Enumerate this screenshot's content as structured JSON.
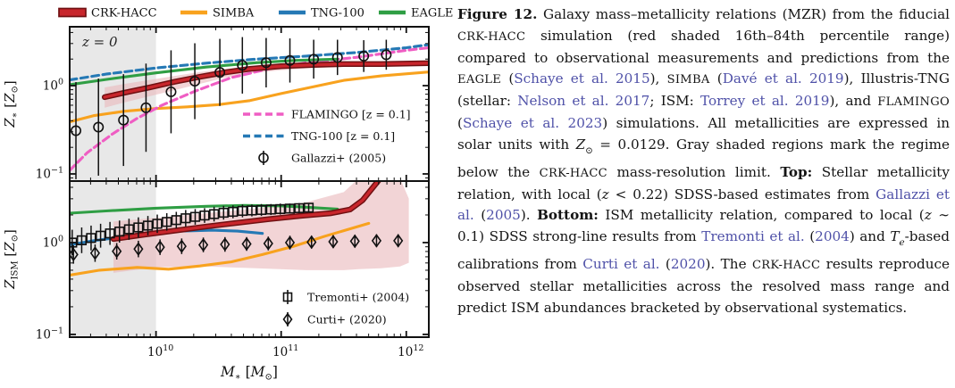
{
  "figure": {
    "link_color": "#4f51a8",
    "caption_segments": [
      {
        "t": "Figure 12.",
        "s": "bold"
      },
      {
        "t": " Galaxy mass–metallicity relations (MZR) from the fiducial ",
        "s": "n"
      },
      {
        "t": "CRK-HACC",
        "s": "sc"
      },
      {
        "t": " simulation (red shaded 16th–84th percentile range) compared to observational measurements and predictions from the ",
        "s": "n"
      },
      {
        "t": "EAGLE",
        "s": "sc"
      },
      {
        "t": " (",
        "s": "n"
      },
      {
        "t": "Schaye et al. 2015",
        "s": "link"
      },
      {
        "t": "), ",
        "s": "n"
      },
      {
        "t": "SIMBA",
        "s": "sc"
      },
      {
        "t": " (",
        "s": "n"
      },
      {
        "t": "Davé et al. 2019",
        "s": "link"
      },
      {
        "t": "), Illustris-TNG (stellar: ",
        "s": "n"
      },
      {
        "t": "Nelson et al. 2017",
        "s": "link"
      },
      {
        "t": "; ISM: ",
        "s": "n"
      },
      {
        "t": "Torrey et al. 2019",
        "s": "link"
      },
      {
        "t": "), and ",
        "s": "n"
      },
      {
        "t": "FLAMINGO",
        "s": "sc"
      },
      {
        "t": " (",
        "s": "n"
      },
      {
        "t": "Schaye et al. 2023",
        "s": "link"
      },
      {
        "t": ") simulations.  All metallicities are expressed in solar units with ",
        "s": "n"
      },
      {
        "t": "Z",
        "s": "math"
      },
      {
        "t": "⊙",
        "s": "msub"
      },
      {
        "t": " = 0.0129.  Gray shaded regions mark the regime below the ",
        "s": "n"
      },
      {
        "t": "CRK-HACC",
        "s": "sc"
      },
      {
        "t": " mass-resolution limit.  ",
        "s": "n"
      },
      {
        "t": "Top:",
        "s": "bold"
      },
      {
        "t": " Stellar metallicity relation, with local (",
        "s": "n"
      },
      {
        "t": "z",
        "s": "math"
      },
      {
        "t": " < 0.22) SDSS-based estimates from ",
        "s": "n"
      },
      {
        "t": "Gallazzi et al.",
        "s": "link"
      },
      {
        "t": " (",
        "s": "n"
      },
      {
        "t": "2005",
        "s": "link"
      },
      {
        "t": ").  ",
        "s": "n"
      },
      {
        "t": "Bottom:",
        "s": "bold"
      },
      {
        "t": " ISM metallicity relation, compared to local (",
        "s": "n"
      },
      {
        "t": "z",
        "s": "math"
      },
      {
        "t": " ∼ 0.1) SDSS strong-line results from ",
        "s": "n"
      },
      {
        "t": "Tremonti et al.",
        "s": "link"
      },
      {
        "t": " (",
        "s": "n"
      },
      {
        "t": "2004",
        "s": "link"
      },
      {
        "t": ") and ",
        "s": "n"
      },
      {
        "t": "T",
        "s": "math"
      },
      {
        "t": "e",
        "s": "msub-it"
      },
      {
        "t": "-based calibrations from ",
        "s": "n"
      },
      {
        "t": "Curti et al.",
        "s": "link"
      },
      {
        "t": " (",
        "s": "n"
      },
      {
        "t": "2020",
        "s": "link"
      },
      {
        "t": ").  The ",
        "s": "n"
      },
      {
        "t": "CRK-HACC",
        "s": "sc"
      },
      {
        "t": " results reproduce observed stellar metallicities across the resolved mass range and predict ISM abundances bracketed by observational systematics.",
        "s": "n"
      }
    ]
  },
  "chart_data": {
    "type": "line",
    "title": "Galaxy mass-metallicity relations (MZR), stellar (top) and ISM (bottom)",
    "colors": {
      "crk": "#c8262c",
      "crk_edge": "#701012",
      "band": "#e9b8ba",
      "simba": "#f8a21e",
      "tng": "#2579b5",
      "eagle": "#2f9e44",
      "flamingo": "#ef5dc3",
      "gray_region": "#e8e8e8",
      "axis": "#111111",
      "marker": "#111111"
    },
    "figure_legend": [
      {
        "label": "CRK-HACC",
        "handle": "patch",
        "color_key": "crk"
      },
      {
        "label": "SIMBA",
        "handle": "line",
        "color_key": "simba"
      },
      {
        "label": "TNG-100",
        "handle": "line",
        "color_key": "tng"
      },
      {
        "label": "EAGLE",
        "handle": "line",
        "color_key": "eagle"
      }
    ],
    "x_axis": {
      "scale": "log",
      "log_range": [
        9.31,
        12.18
      ],
      "major_ticks": [
        {
          "v": 10,
          "e": "10"
        },
        {
          "v": 11,
          "e": "11"
        },
        {
          "v": 12,
          "e": "12"
        }
      ],
      "label_parts": [
        {
          "t": "M",
          "i": 1
        },
        {
          "t": "∗",
          "s": 1
        },
        {
          "t": " ["
        },
        {
          "t": "M",
          "i": 1
        },
        {
          "t": "⊙",
          "s": 1
        },
        {
          "t": "]"
        }
      ]
    },
    "panels": [
      {
        "name": "stellar-metallicity",
        "annotation": "z = 0",
        "log_range": [
          -1.081,
          0.667
        ],
        "major_ticks": [
          {
            "v": 0,
            "e": "0"
          },
          {
            "v": -1,
            "e": "−1"
          }
        ],
        "ylabel_parts": [
          {
            "t": "Z",
            "i": 1
          },
          {
            "t": "∗",
            "s": 1
          },
          {
            "t": " ["
          },
          {
            "t": "Z",
            "i": 1
          },
          {
            "t": "⊙",
            "s": 1
          },
          {
            "t": "]"
          }
        ],
        "gray_region": [
          9.31,
          10.0
        ],
        "legend": [
          {
            "label": "FLAMINGO [z = 0.1]",
            "handle": "dashed",
            "color_key": "flamingo"
          },
          {
            "label": "TNG-100 [z = 0.1]",
            "handle": "dashed",
            "color_key": "tng"
          },
          {
            "label": "Gallazzi+ (2005)",
            "handle": "circle"
          }
        ],
        "series": [
          {
            "name": "SIMBA",
            "color_key": "simba",
            "style": "solid",
            "x": [
              9.31,
              9.5,
              9.75,
              10.0,
              10.25,
              10.5,
              10.75,
              11.0,
              11.25,
              11.5,
              11.8,
              12.18
            ],
            "y": [
              -0.41,
              -0.34,
              -0.29,
              -0.26,
              -0.24,
              -0.215,
              -0.17,
              -0.09,
              -0.015,
              0.06,
              0.11,
              0.155
            ]
          },
          {
            "name": "FLAMINGO [z = 0.1]",
            "color_key": "flamingo",
            "style": "dashed",
            "x": [
              9.31,
              9.45,
              9.65,
              9.85,
              10.05,
              10.3,
              10.6,
              10.9,
              11.2,
              11.6,
              12.0,
              12.18
            ],
            "y": [
              -0.96,
              -0.76,
              -0.55,
              -0.37,
              -0.22,
              -0.07,
              0.09,
              0.19,
              0.26,
              0.32,
              0.4,
              0.43
            ]
          },
          {
            "name": "EAGLE",
            "color_key": "eagle",
            "style": "solid",
            "x": [
              9.31,
              9.6,
              10.0,
              10.4,
              10.8,
              11.1,
              11.45
            ],
            "y": [
              0.01,
              0.07,
              0.145,
              0.21,
              0.26,
              0.285,
              0.3
            ]
          },
          {
            "name": "TNG-100 [z = 0.1]",
            "color_key": "tng",
            "style": "dashed",
            "x": [
              9.31,
              9.6,
              10.0,
              10.4,
              10.8,
              11.2,
              11.6,
              12.0,
              12.18
            ],
            "y": [
              0.065,
              0.13,
              0.2,
              0.255,
              0.3,
              0.335,
              0.375,
              0.43,
              0.465
            ]
          },
          {
            "name": "CRK-HACC",
            "color_key": "crk",
            "style": "solid",
            "edge": true,
            "x": [
              9.59,
              9.75,
              9.95,
              10.15,
              10.35,
              10.55,
              10.75,
              11.0,
              11.25,
              11.5,
              11.8,
              12.18
            ],
            "y": [
              -0.13,
              -0.08,
              -0.02,
              0.045,
              0.1,
              0.15,
              0.19,
              0.22,
              0.235,
              0.245,
              0.245,
              0.255
            ],
            "band": {
              "x": [
                9.59,
                9.75,
                9.95,
                10.15,
                10.35,
                10.55,
                10.75,
                11.0,
                11.25,
                11.5,
                11.8,
                12.18
              ],
              "upper": [
                -0.02,
                0.02,
                0.065,
                0.11,
                0.155,
                0.19,
                0.22,
                0.245,
                0.255,
                0.265,
                0.265,
                0.275
              ],
              "lower": [
                -0.25,
                -0.19,
                -0.12,
                -0.05,
                0.02,
                0.09,
                0.14,
                0.175,
                0.2,
                0.215,
                0.22,
                0.23
              ]
            }
          },
          {
            "name": "Gallazzi+ (2005)",
            "marker": "circle",
            "x": [
              9.36,
              9.54,
              9.74,
              9.92,
              10.12,
              10.31,
              10.51,
              10.69,
              10.88,
              11.07,
              11.26,
              11.45,
              11.66,
              11.84
            ],
            "y": [
              -0.51,
              -0.47,
              -0.39,
              -0.25,
              -0.07,
              0.05,
              0.15,
              0.23,
              0.26,
              0.285,
              0.3,
              0.32,
              0.335,
              0.35
            ],
            "yerr": [
              0.55,
              0.55,
              0.52,
              0.5,
              0.47,
              0.43,
              0.38,
              0.32,
              0.28,
              0.25,
              0.22,
              0.2,
              0.18,
              0.17
            ]
          }
        ]
      },
      {
        "name": "ism-metallicity",
        "annotation": "",
        "log_range": [
          -1.03,
          0.67
        ],
        "major_ticks": [
          {
            "v": 0,
            "e": "0"
          },
          {
            "v": -1,
            "e": "−1"
          }
        ],
        "ylabel_parts": [
          {
            "t": "Z",
            "i": 1
          },
          {
            "t": "ISM",
            "s": 1
          },
          {
            "t": " ["
          },
          {
            "t": "Z",
            "i": 1
          },
          {
            "t": "⊙",
            "s": 1
          },
          {
            "t": "]"
          }
        ],
        "gray_region": [
          9.31,
          10.0
        ],
        "legend": [
          {
            "label": "Tremonti+ (2004)",
            "handle": "square"
          },
          {
            "label": "Curti+ (2020)",
            "handle": "diamond"
          }
        ],
        "series": [
          {
            "name": "SIMBA",
            "color_key": "simba",
            "style": "solid",
            "x": [
              9.31,
              9.55,
              9.85,
              10.1,
              10.35,
              10.6,
              10.85,
              11.1,
              11.35,
              11.7
            ],
            "y": [
              -0.355,
              -0.3,
              -0.27,
              -0.29,
              -0.255,
              -0.21,
              -0.13,
              -0.04,
              0.07,
              0.21
            ]
          },
          {
            "name": "TNG-100",
            "color_key": "tng",
            "style": "solid",
            "x": [
              9.31,
              9.5,
              9.75,
              10.0,
              10.2,
              10.45,
              10.65,
              10.85
            ],
            "y": [
              -0.025,
              0.02,
              0.065,
              0.1,
              0.125,
              0.135,
              0.125,
              0.1
            ]
          },
          {
            "name": "EAGLE",
            "color_key": "eagle",
            "style": "solid",
            "x": [
              9.31,
              9.6,
              10.0,
              10.4,
              10.7,
              11.0,
              11.2,
              11.45
            ],
            "y": [
              0.32,
              0.345,
              0.375,
              0.395,
              0.405,
              0.4,
              0.385,
              0.365
            ]
          },
          {
            "name": "CRK-HACC",
            "color_key": "crk",
            "style": "solid",
            "edge": true,
            "x": [
              9.66,
              9.9,
              10.15,
              10.4,
              10.65,
              10.9,
              11.15,
              11.4,
              11.55,
              11.65,
              11.78
            ],
            "y": [
              0.04,
              0.085,
              0.13,
              0.175,
              0.215,
              0.255,
              0.29,
              0.32,
              0.36,
              0.46,
              0.68
            ],
            "band": {
              "x": [
                9.66,
                10.0,
                10.4,
                10.8,
                11.2,
                11.5,
                11.62,
                11.8,
                11.95,
                12.02
              ],
              "upper": [
                0.23,
                0.27,
                0.32,
                0.37,
                0.44,
                0.55,
                0.7,
                0.7,
                0.7,
                0.48
              ],
              "lower": [
                -0.33,
                -0.27,
                -0.26,
                -0.28,
                -0.3,
                -0.3,
                -0.29,
                -0.28,
                -0.26,
                -0.22
              ]
            }
          },
          {
            "name": "Tremonti+ (2004)",
            "marker": "square",
            "x": [
              9.33,
              9.406,
              9.481,
              9.557,
              9.632,
              9.708,
              9.784,
              9.859,
              9.935,
              10.01,
              10.086,
              10.162,
              10.237,
              10.313,
              10.388,
              10.464,
              10.54,
              10.615,
              10.691,
              10.766,
              10.842,
              10.918,
              10.993,
              11.069,
              11.144,
              11.22
            ],
            "y": [
              0.0,
              0.025,
              0.05,
              0.075,
              0.1,
              0.12,
              0.145,
              0.165,
              0.185,
              0.205,
              0.225,
              0.245,
              0.265,
              0.28,
              0.295,
              0.31,
              0.325,
              0.335,
              0.345,
              0.35,
              0.355,
              0.36,
              0.365,
              0.37,
              0.375,
              0.38
            ],
            "yerr": [
              0.14,
              0.14,
              0.135,
              0.13,
              0.125,
              0.12,
              0.115,
              0.11,
              0.105,
              0.1,
              0.095,
              0.09,
              0.09,
              0.085,
              0.08,
              0.08,
              0.075,
              0.07,
              0.07,
              0.065,
              0.065,
              0.06,
              0.06,
              0.055,
              0.055,
              0.05
            ]
          },
          {
            "name": "Curti+ (2020)",
            "marker": "diamond",
            "x": [
              9.34,
              9.513,
              9.686,
              9.859,
              10.032,
              10.205,
              10.378,
              10.551,
              10.724,
              10.897,
              11.07,
              11.243,
              11.416,
              11.589,
              11.762,
              11.935
            ],
            "y": [
              -0.13,
              -0.115,
              -0.095,
              -0.07,
              -0.05,
              -0.04,
              -0.025,
              -0.02,
              -0.015,
              -0.01,
              0.0,
              0.005,
              0.01,
              0.015,
              0.02,
              0.02
            ],
            "yerr": [
              0.1,
              0.095,
              0.09,
              0.09,
              0.085,
              0.085,
              0.08,
              0.08,
              0.075,
              0.075,
              0.075,
              0.07,
              0.07,
              0.07,
              0.07,
              0.07
            ]
          }
        ]
      }
    ]
  }
}
